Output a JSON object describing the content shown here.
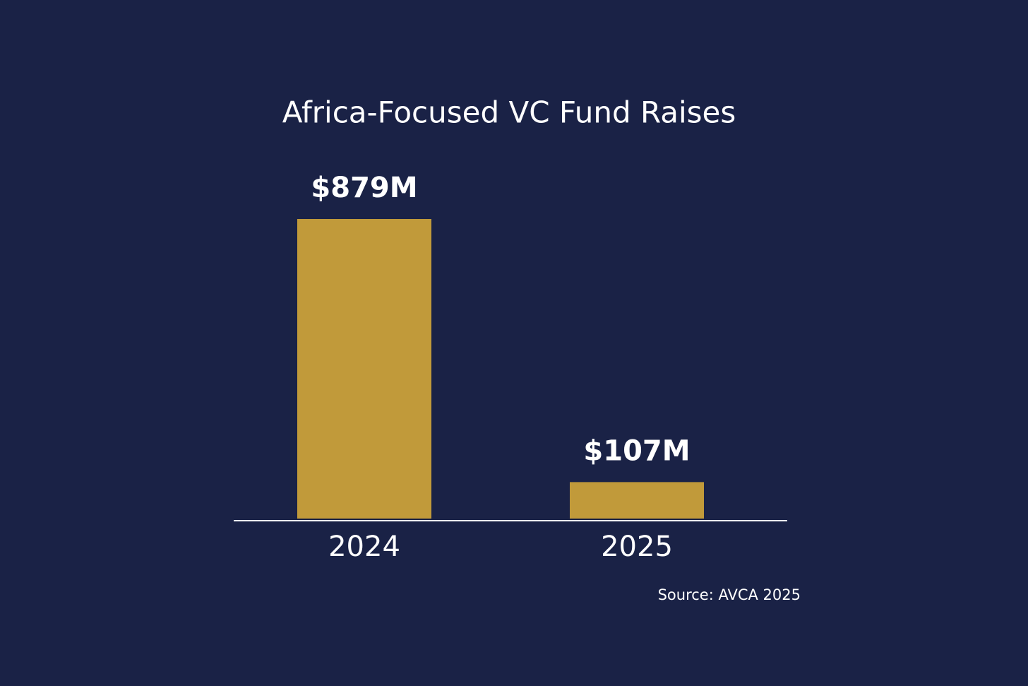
{
  "chart_data": {
    "type": "bar",
    "title": "Africa-Focused VC Fund Raises",
    "categories": [
      "2024",
      "2025"
    ],
    "values": [
      879,
      107
    ],
    "value_labels": [
      "$879M",
      "$107M"
    ],
    "color": "#c19a3a",
    "source": "Source: AVCA 2025"
  }
}
